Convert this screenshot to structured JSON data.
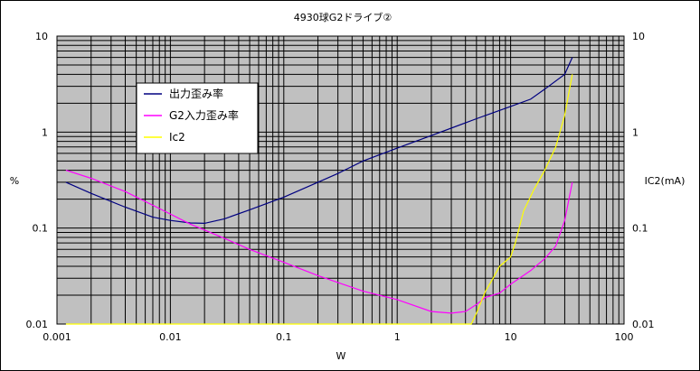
{
  "chart_data": {
    "type": "line",
    "title": "4930球G2ドライブ②",
    "xlabel": "W",
    "ylabel": "%",
    "y2label": "IC2(mA)",
    "xscale": "log",
    "yscale": "log",
    "xlim": [
      0.001,
      100
    ],
    "ylim": [
      0.01,
      10
    ],
    "y2lim": [
      0.01,
      10
    ],
    "x_tick_labels": [
      "0.001",
      "0.01",
      "0.1",
      "1",
      "10",
      "100"
    ],
    "y_tick_labels": [
      "0.01",
      "0.1",
      "1",
      "10"
    ],
    "y2_tick_labels": [
      "0.01",
      "0.1",
      "1",
      "10"
    ],
    "grid": true,
    "plot_background": "#c0c0c0",
    "legend_position": "upper-left",
    "series": [
      {
        "name": "出力歪み率",
        "color": "#000080",
        "axis": "left",
        "points": [
          [
            0.0012,
            0.3
          ],
          [
            0.002,
            0.23
          ],
          [
            0.004,
            0.165
          ],
          [
            0.007,
            0.13
          ],
          [
            0.01,
            0.12
          ],
          [
            0.015,
            0.113
          ],
          [
            0.02,
            0.112
          ],
          [
            0.03,
            0.125
          ],
          [
            0.05,
            0.155
          ],
          [
            0.1,
            0.21
          ],
          [
            0.2,
            0.3
          ],
          [
            0.3,
            0.37
          ],
          [
            0.5,
            0.5
          ],
          [
            1,
            0.68
          ],
          [
            2,
            0.92
          ],
          [
            5,
            1.38
          ],
          [
            10,
            1.85
          ],
          [
            15,
            2.2
          ],
          [
            20,
            2.8
          ],
          [
            30,
            4.0
          ],
          [
            35,
            6.0
          ]
        ]
      },
      {
        "name": "G2入力歪み率",
        "color": "#ff00ff",
        "axis": "left",
        "points": [
          [
            0.0012,
            0.4
          ],
          [
            0.002,
            0.33
          ],
          [
            0.004,
            0.24
          ],
          [
            0.008,
            0.16
          ],
          [
            0.015,
            0.11
          ],
          [
            0.03,
            0.078
          ],
          [
            0.05,
            0.06
          ],
          [
            0.1,
            0.044
          ],
          [
            0.2,
            0.032
          ],
          [
            0.5,
            0.022
          ],
          [
            1,
            0.018
          ],
          [
            2,
            0.0135
          ],
          [
            3,
            0.013
          ],
          [
            4,
            0.0135
          ],
          [
            5,
            0.016
          ],
          [
            6,
            0.019
          ],
          [
            8,
            0.021
          ],
          [
            10,
            0.026
          ],
          [
            15,
            0.036
          ],
          [
            20,
            0.048
          ],
          [
            25,
            0.065
          ],
          [
            30,
            0.12
          ],
          [
            35,
            0.3
          ]
        ]
      },
      {
        "name": "Ic2",
        "color": "#ffff00",
        "axis": "right",
        "points": [
          [
            0.0012,
            0.01
          ],
          [
            4.5,
            0.01
          ],
          [
            5,
            0.013
          ],
          [
            6,
            0.022
          ],
          [
            7,
            0.03
          ],
          [
            8,
            0.04
          ],
          [
            9,
            0.045
          ],
          [
            10,
            0.05
          ],
          [
            11,
            0.07
          ],
          [
            13,
            0.15
          ],
          [
            16,
            0.25
          ],
          [
            20,
            0.4
          ],
          [
            25,
            0.7
          ],
          [
            30,
            1.5
          ],
          [
            35,
            4.0
          ]
        ]
      }
    ]
  }
}
